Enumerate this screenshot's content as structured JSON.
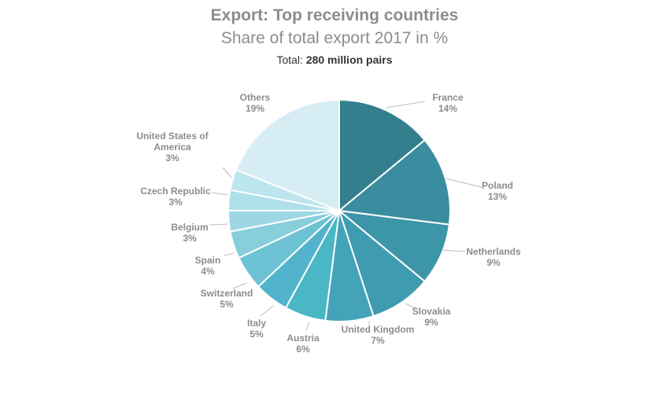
{
  "chart_data": {
    "type": "pie",
    "title": "Export: Top receiving countries",
    "subtitle": "Share of total export 2017 in %",
    "total_label": "Total:",
    "total_value": "280 million pairs",
    "slices": [
      {
        "name": "France",
        "value": 14,
        "label": "14%",
        "color": "#347f8e"
      },
      {
        "name": "Poland",
        "value": 13,
        "label": "13%",
        "color": "#3a8c9f"
      },
      {
        "name": "Netherlands",
        "value": 9,
        "label": "9%",
        "color": "#3d95a8"
      },
      {
        "name": "Slovakia",
        "value": 9,
        "label": "9%",
        "color": "#3f9bb0"
      },
      {
        "name": "United Kingdom",
        "value": 7,
        "label": "7%",
        "color": "#44a3b8"
      },
      {
        "name": "Austria",
        "value": 6,
        "label": "6%",
        "color": "#49b7c4"
      },
      {
        "name": "Italy",
        "value": 5,
        "label": "5%",
        "color": "#52b4cc"
      },
      {
        "name": "Switzerland",
        "value": 5,
        "label": "5%",
        "color": "#6dc2d4"
      },
      {
        "name": "Spain",
        "value": 4,
        "label": "4%",
        "color": "#88cedc"
      },
      {
        "name": "Belgium",
        "value": 3,
        "label": "3%",
        "color": "#9dd7e3"
      },
      {
        "name": "Czech Republic",
        "value": 3,
        "label": "3%",
        "color": "#afdfe9"
      },
      {
        "name": "United States of America",
        "value": 3,
        "label": "3%",
        "color": "#bde5ee"
      },
      {
        "name": "Others",
        "value": 19,
        "label": "19%",
        "color": "#d6edf3"
      }
    ]
  }
}
